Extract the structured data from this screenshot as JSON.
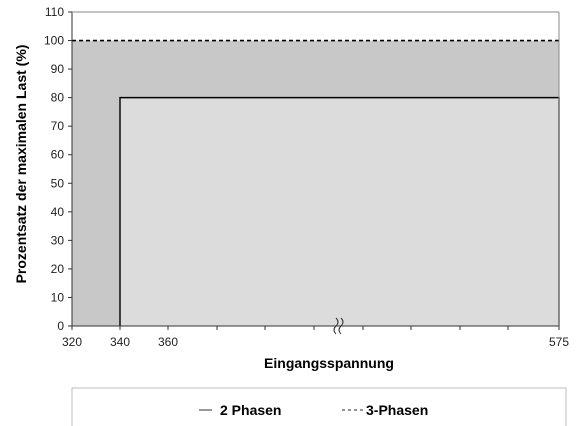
{
  "chart_data": {
    "type": "area",
    "xlabel": "Eingangsspannung",
    "ylabel": "Prozentsatz der maximalen Last (%)",
    "xlim": [
      320,
      575
    ],
    "ylim": [
      0,
      110
    ],
    "y_ticks": [
      0,
      10,
      20,
      30,
      40,
      50,
      60,
      70,
      80,
      90,
      100,
      110
    ],
    "x_ticks": [
      320,
      340,
      360,
      575
    ],
    "x_axis_break": true,
    "grid": "vertical",
    "legend_position": "bottom",
    "series": [
      {
        "name": "3-Phasen",
        "line_style": "dashed",
        "fill": "#c8c8c8",
        "points": [
          [
            320,
            100
          ],
          [
            575,
            100
          ]
        ]
      },
      {
        "name": "2 Phasen",
        "line_style": "solid",
        "fill": "#dcdcdc",
        "points": [
          [
            340,
            0
          ],
          [
            340,
            80
          ],
          [
            575,
            80
          ],
          [
            575,
            0
          ]
        ]
      }
    ],
    "colors": {
      "outer_fill": "#c8c8c8",
      "inner_fill": "#dcdcdc",
      "line": "#000000",
      "grid": "#ffffff"
    }
  }
}
